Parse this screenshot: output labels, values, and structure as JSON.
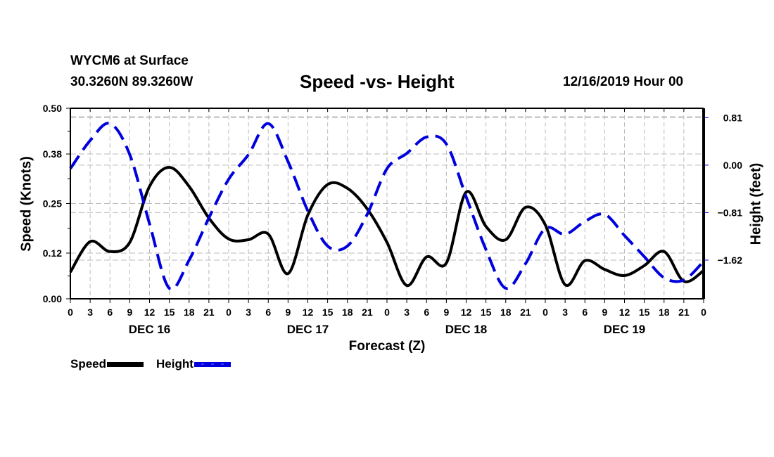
{
  "header": {
    "station": "WYCM6 at Surface",
    "coords": "30.3260N 89.3260W",
    "title": "Speed -vs- Height",
    "datetime": "12/16/2019 Hour 00"
  },
  "chart_data": {
    "type": "line",
    "title": "Speed -vs- Height",
    "xlabel": "Forecast (Z)",
    "ylabel": "Speed (Knots)",
    "y2label": "Height (feet)",
    "x_hours": [
      0,
      3,
      6,
      9,
      12,
      15,
      18,
      21,
      24,
      27,
      30,
      33,
      36,
      39,
      42,
      45,
      48,
      51,
      54,
      57,
      60,
      63,
      66,
      69,
      72,
      75,
      78,
      81,
      84,
      87,
      90,
      93,
      96
    ],
    "x_tick_labels": [
      "0",
      "3",
      "6",
      "9",
      "12",
      "15",
      "18",
      "21",
      "0",
      "3",
      "6",
      "9",
      "12",
      "15",
      "18",
      "21",
      "0",
      "3",
      "6",
      "9",
      "12",
      "15",
      "18",
      "21",
      "0",
      "3",
      "6",
      "9",
      "12",
      "15",
      "18",
      "21",
      "0"
    ],
    "day_labels": [
      {
        "label": "DEC 16",
        "center_hour": 12
      },
      {
        "label": "DEC 17",
        "center_hour": 36
      },
      {
        "label": "DEC 18",
        "center_hour": 60
      },
      {
        "label": "DEC 19",
        "center_hour": 84
      }
    ],
    "ylim": [
      0,
      0.5
    ],
    "y_ticks": [
      0.0,
      0.12,
      0.25,
      0.38,
      0.5
    ],
    "y_tick_labels": [
      "0.00",
      "0.12",
      "0.25",
      "0.38",
      "0.50"
    ],
    "y2lim": [
      -2.28,
      0.97
    ],
    "y2_ticks": [
      0.81,
      0.0,
      -0.81,
      -1.62
    ],
    "y2_tick_labels": [
      "0.81",
      "0.00",
      "−0.81",
      "−1.62"
    ],
    "grid": true,
    "legend_position": "bottom-left",
    "series": [
      {
        "name": "Speed",
        "axis": "left",
        "color": "#000000",
        "style": "solid",
        "values": [
          0.07,
          0.15,
          0.124,
          0.148,
          0.295,
          0.345,
          0.295,
          0.212,
          0.157,
          0.155,
          0.17,
          0.066,
          0.22,
          0.3,
          0.29,
          0.236,
          0.148,
          0.035,
          0.11,
          0.094,
          0.28,
          0.19,
          0.155,
          0.24,
          0.194,
          0.037,
          0.1,
          0.077,
          0.061,
          0.087,
          0.124,
          0.046,
          0.074
        ]
      },
      {
        "name": "Height",
        "axis": "right",
        "color": "#0000dd",
        "style": "dashed",
        "values": [
          -0.06,
          0.42,
          0.71,
          0.18,
          -1.0,
          -2.1,
          -1.62,
          -0.9,
          -0.24,
          0.18,
          0.71,
          0.06,
          -0.78,
          -1.38,
          -1.38,
          -0.84,
          -0.06,
          0.2,
          0.48,
          0.36,
          -0.54,
          -1.44,
          -2.1,
          -1.68,
          -1.08,
          -1.18,
          -0.96,
          -0.84,
          -1.2,
          -1.56,
          -1.92,
          -1.96,
          -1.64
        ]
      }
    ]
  },
  "legend": {
    "speed_label": "Speed",
    "height_label": "Height"
  }
}
